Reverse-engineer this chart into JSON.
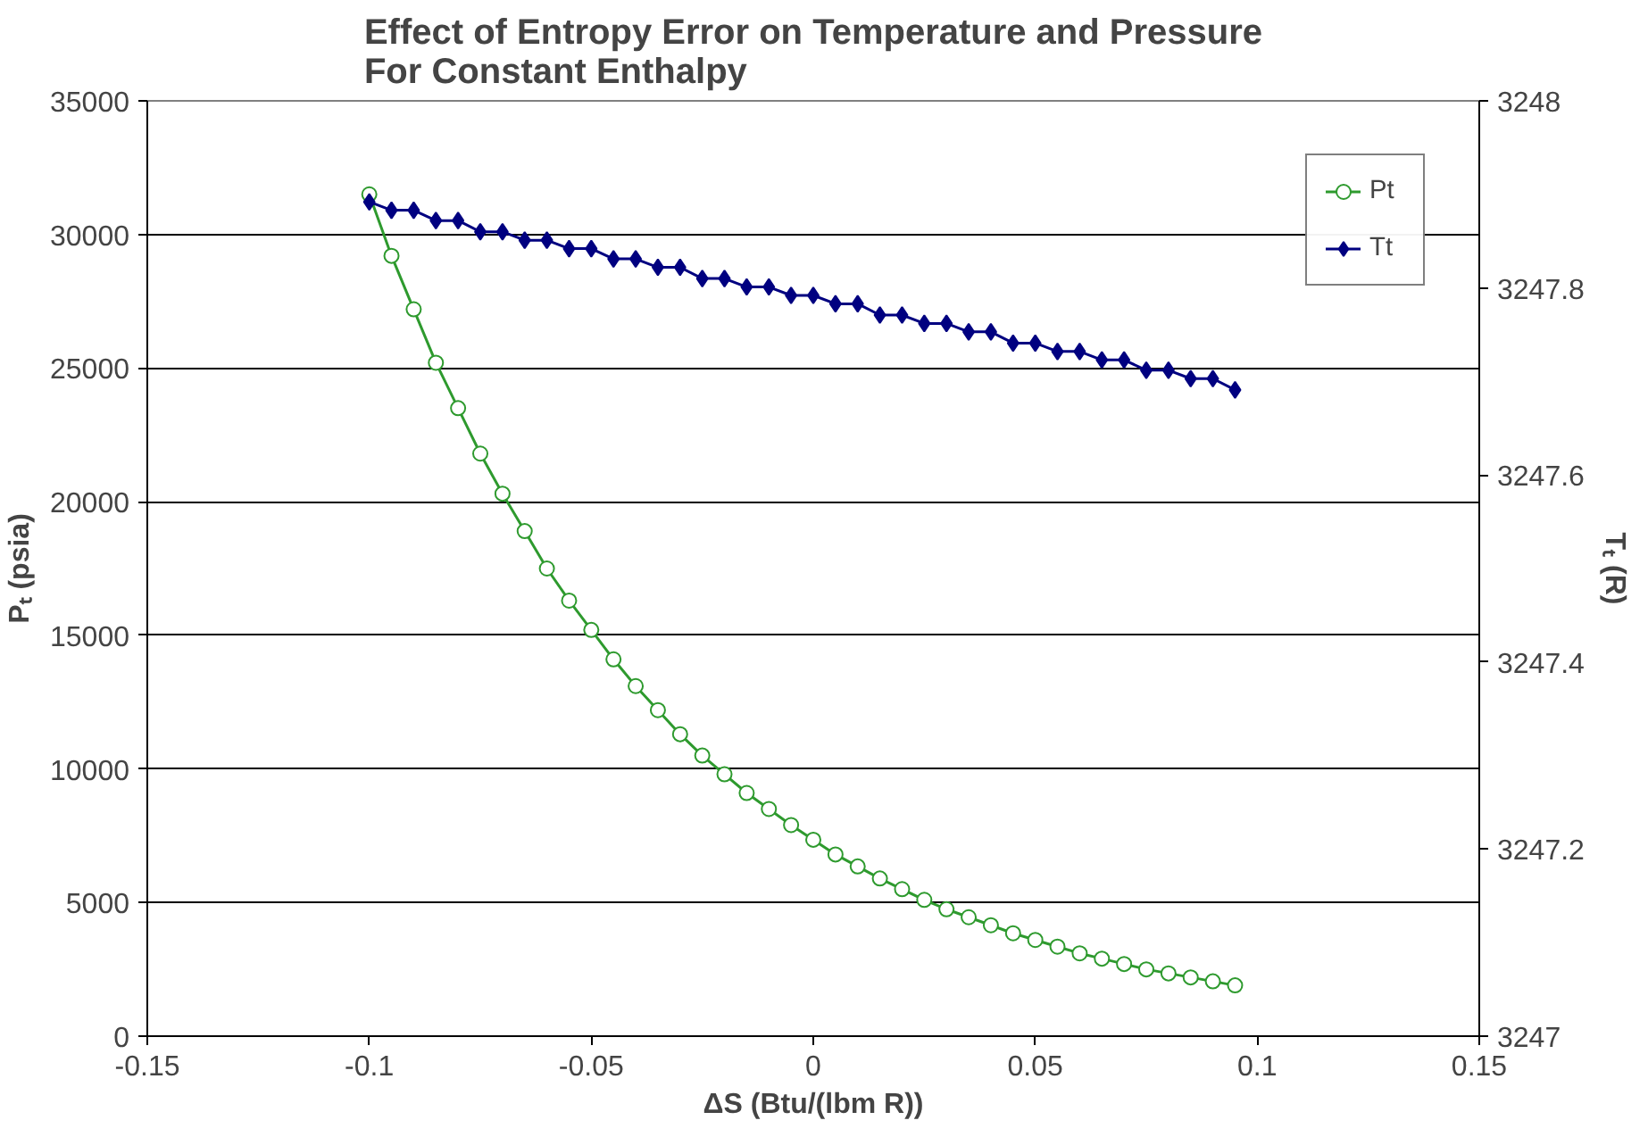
{
  "chart_data": {
    "type": "line",
    "title": "Effect of Entropy Error on Temperature and Pressure\nFor Constant Enthalpy",
    "xlabel": "ΔS (Btu/(lbm R))",
    "ylabel": "Pₜ (psia)",
    "y2label": "Tₜ (R)",
    "x": [
      -0.1,
      -0.095,
      -0.09,
      -0.085,
      -0.08,
      -0.075,
      -0.07,
      -0.065,
      -0.06,
      -0.055,
      -0.05,
      -0.045,
      -0.04,
      -0.035,
      -0.03,
      -0.025,
      -0.02,
      -0.015,
      -0.01,
      -0.005,
      0,
      0.005,
      0.01,
      0.015,
      0.02,
      0.025,
      0.03,
      0.035,
      0.04,
      0.045,
      0.05,
      0.055,
      0.06,
      0.065,
      0.07,
      0.075,
      0.08,
      0.085,
      0.09,
      0.095
    ],
    "series": [
      {
        "name": "Pt",
        "color": "#2e9a2e",
        "marker": "circle",
        "axis": "y",
        "values": [
          31500,
          29200,
          27200,
          25200,
          23500,
          21800,
          20300,
          18900,
          17500,
          16300,
          15200,
          14100,
          13100,
          12200,
          11300,
          10500,
          9800,
          9100,
          8500,
          7900,
          7350,
          6800,
          6350,
          5900,
          5500,
          5100,
          4750,
          4450,
          4150,
          3850,
          3600,
          3350,
          3100,
          2900,
          2700,
          2500,
          2350,
          2200,
          2050,
          1900
        ]
      },
      {
        "name": "Tt",
        "color": "#000080",
        "marker": "diamond",
        "axis": "y2",
        "values": [
          3247.892,
          3247.883,
          3247.883,
          3247.872,
          3247.872,
          3247.86,
          3247.86,
          3247.851,
          3247.851,
          3247.842,
          3247.842,
          3247.831,
          3247.831,
          3247.822,
          3247.822,
          3247.81,
          3247.81,
          3247.801,
          3247.801,
          3247.792,
          3247.792,
          3247.783,
          3247.783,
          3247.771,
          3247.771,
          3247.762,
          3247.762,
          3247.753,
          3247.753,
          3247.741,
          3247.741,
          3247.732,
          3247.732,
          3247.723,
          3247.723,
          3247.712,
          3247.712,
          3247.703,
          3247.703,
          3247.691
        ]
      }
    ],
    "xlim": [
      -0.15,
      0.15
    ],
    "xticks": [
      -0.15,
      -0.1,
      -0.05,
      0,
      0.05,
      0.1,
      0.15
    ],
    "ylim": [
      0,
      35000
    ],
    "yticks": [
      0,
      5000,
      10000,
      15000,
      20000,
      25000,
      30000,
      35000
    ],
    "y2lim": [
      3247,
      3248
    ],
    "y2ticks": [
      3247,
      3247.2,
      3247.4,
      3247.6,
      3247.8,
      3248
    ],
    "grid": "y",
    "legend": "top right"
  }
}
